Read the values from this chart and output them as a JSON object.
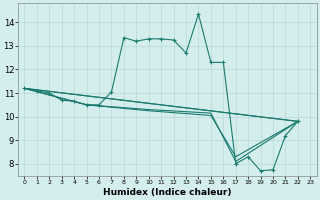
{
  "xlabel": "Humidex (Indice chaleur)",
  "background_color": "#d4eeee",
  "grid_color": "#b8d8d8",
  "line_color": "#1a7a6e",
  "xlim": [
    -0.5,
    23.5
  ],
  "ylim": [
    7.5,
    14.8
  ],
  "yticks": [
    8,
    9,
    10,
    11,
    12,
    13,
    14
  ],
  "xticks": [
    0,
    1,
    2,
    3,
    4,
    5,
    6,
    7,
    8,
    9,
    10,
    11,
    12,
    13,
    14,
    15,
    16,
    17,
    18,
    19,
    20,
    21,
    22,
    23
  ],
  "curves": [
    {
      "x": [
        0,
        1,
        2,
        3,
        4,
        5,
        6,
        7,
        8,
        9,
        10,
        11,
        12,
        13,
        14,
        15,
        16,
        17,
        18,
        19,
        20,
        21,
        22
      ],
      "y": [
        11.2,
        11.1,
        11.0,
        10.7,
        10.65,
        10.5,
        10.5,
        11.05,
        13.35,
        13.2,
        13.3,
        13.3,
        13.25,
        12.7,
        14.35,
        12.3,
        12.3,
        8.0,
        8.3,
        7.7,
        7.75,
        9.2,
        9.8
      ]
    },
    {
      "x": [
        0,
        22
      ],
      "y": [
        11.2,
        9.8
      ]
    },
    {
      "x": [
        0,
        22
      ],
      "y": [
        11.2,
        9.8
      ]
    },
    {
      "x": [
        0,
        5,
        10,
        15,
        17,
        22
      ],
      "y": [
        11.2,
        10.5,
        10.3,
        10.15,
        8.1,
        9.8
      ]
    },
    {
      "x": [
        0,
        5,
        10,
        15,
        17,
        22
      ],
      "y": [
        11.2,
        10.5,
        10.25,
        10.05,
        8.3,
        9.8
      ]
    }
  ]
}
